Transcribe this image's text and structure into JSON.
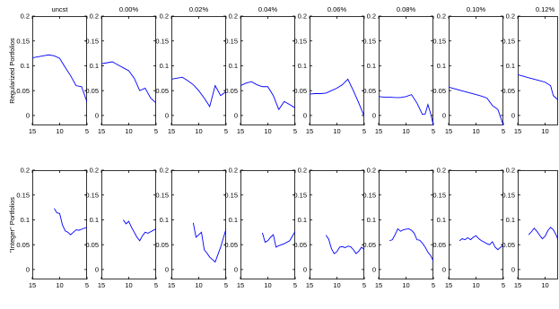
{
  "figure": {
    "row_labels": [
      "Regularized Portfolios",
      "\"Integer\" Portfolios"
    ],
    "col_titles": [
      "uncst",
      "0.00%",
      "0.02%",
      "0.04%",
      "0.06%",
      "0.08%",
      "0.10%",
      "0.12%"
    ]
  },
  "chart_data": [
    {
      "type": "line",
      "row": 0,
      "col": 0,
      "title": "uncst",
      "ylabel": "Regularized Portfolios",
      "xlim": [
        15,
        5
      ],
      "ylim": [
        -0.02,
        0.2
      ],
      "x_reversed": true,
      "xticks": [
        15,
        10,
        5
      ],
      "yticks": [
        0,
        0.05,
        0.1,
        0.15,
        0.2
      ],
      "ytick_labels": [
        "0",
        "0.05",
        "0.1",
        "0.15",
        "0.2"
      ],
      "line_color": "#0000ff",
      "series": [
        {
          "x": [
            15,
            14,
            13,
            12,
            11,
            10,
            9,
            8,
            7,
            6,
            5
          ],
          "y": [
            0.116,
            0.118,
            0.12,
            0.122,
            0.12,
            0.115,
            0.097,
            0.08,
            0.06,
            0.058,
            0.027
          ]
        }
      ]
    },
    {
      "type": "line",
      "row": 0,
      "col": 1,
      "title": "0.00%",
      "xlim": [
        15,
        5
      ],
      "ylim": [
        -0.02,
        0.2
      ],
      "x_reversed": true,
      "xticks": [
        15,
        10,
        5
      ],
      "yticks": [
        0,
        0.05,
        0.1,
        0.15,
        0.2
      ],
      "ytick_labels": [
        "0",
        "0.05",
        "0.1",
        "0.15",
        "0.2"
      ],
      "line_color": "#0000ff",
      "series": [
        {
          "x": [
            15,
            14,
            13,
            12,
            11,
            10,
            9,
            8,
            7,
            6,
            5
          ],
          "y": [
            0.104,
            0.106,
            0.108,
            0.102,
            0.096,
            0.09,
            0.075,
            0.05,
            0.055,
            0.035,
            0.025
          ]
        }
      ]
    },
    {
      "type": "line",
      "row": 0,
      "col": 2,
      "title": "0.02%",
      "xlim": [
        15,
        5
      ],
      "ylim": [
        -0.02,
        0.2
      ],
      "x_reversed": true,
      "xticks": [
        15,
        10,
        5
      ],
      "yticks": [
        0,
        0.05,
        0.1,
        0.15,
        0.2
      ],
      "ytick_labels": [
        "0",
        "0.05",
        "0.1",
        "0.15",
        "0.2"
      ],
      "line_color": "#0000ff",
      "series": [
        {
          "x": [
            15,
            14,
            13,
            12,
            11,
            10,
            9,
            8,
            7,
            6,
            5
          ],
          "y": [
            0.073,
            0.075,
            0.077,
            0.07,
            0.062,
            0.05,
            0.035,
            0.018,
            0.06,
            0.04,
            0.048
          ]
        }
      ]
    },
    {
      "type": "line",
      "row": 0,
      "col": 3,
      "title": "0.04%",
      "xlim": [
        15,
        5
      ],
      "ylim": [
        -0.02,
        0.2
      ],
      "x_reversed": true,
      "xticks": [
        15,
        10,
        5
      ],
      "yticks": [
        0,
        0.05,
        0.1,
        0.15,
        0.2
      ],
      "ytick_labels": [
        "0",
        "0.05",
        "0.1",
        "0.15",
        "0.2"
      ],
      "line_color": "#0000ff",
      "series": [
        {
          "x": [
            15,
            14,
            13,
            12,
            11,
            10,
            9,
            8,
            7,
            6,
            5
          ],
          "y": [
            0.06,
            0.065,
            0.068,
            0.062,
            0.058,
            0.058,
            0.04,
            0.012,
            0.028,
            0.022,
            0.015
          ]
        }
      ]
    },
    {
      "type": "line",
      "row": 0,
      "col": 4,
      "title": "0.06%",
      "xlim": [
        15,
        5
      ],
      "ylim": [
        -0.02,
        0.2
      ],
      "x_reversed": true,
      "xticks": [
        15,
        10,
        5
      ],
      "yticks": [
        0,
        0.05,
        0.1,
        0.15,
        0.2
      ],
      "ytick_labels": [
        "0",
        "0.05",
        "0.1",
        "0.15",
        "0.2"
      ],
      "line_color": "#0000ff",
      "series": [
        {
          "x": [
            15,
            14,
            13,
            12,
            11,
            10,
            9,
            8,
            7,
            6,
            5
          ],
          "y": [
            0.043,
            0.044,
            0.044,
            0.045,
            0.05,
            0.055,
            0.062,
            0.073,
            0.05,
            0.025,
            -0.002
          ]
        }
      ]
    },
    {
      "type": "line",
      "row": 0,
      "col": 5,
      "title": "0.08%",
      "xlim": [
        15,
        5
      ],
      "ylim": [
        -0.02,
        0.2
      ],
      "x_reversed": true,
      "xticks": [
        15,
        10,
        5
      ],
      "yticks": [
        0,
        0.05,
        0.1,
        0.15,
        0.2
      ],
      "ytick_labels": [
        "0",
        "0.05",
        "0.1",
        "0.15",
        "0.2"
      ],
      "line_color": "#0000ff",
      "series": [
        {
          "x": [
            15,
            14,
            13,
            12,
            11,
            10,
            9,
            8,
            7,
            6.5,
            6,
            5.5,
            5
          ],
          "y": [
            0.038,
            0.037,
            0.037,
            0.036,
            0.036,
            0.038,
            0.042,
            0.025,
            0.002,
            0.003,
            0.022,
            0.004,
            -0.02
          ]
        }
      ]
    },
    {
      "type": "line",
      "row": 0,
      "col": 6,
      "title": "0.10%",
      "xlim": [
        15,
        5
      ],
      "ylim": [
        -0.02,
        0.2
      ],
      "x_reversed": true,
      "xticks": [
        15,
        10,
        5
      ],
      "yticks": [
        0,
        0.05,
        0.1,
        0.15,
        0.2
      ],
      "ytick_labels": [
        "0",
        "0.05",
        "0.1",
        "0.15",
        "0.2"
      ],
      "line_color": "#0000ff",
      "series": [
        {
          "x": [
            15,
            14,
            13,
            12,
            11,
            10,
            9,
            8,
            7,
            6,
            5
          ],
          "y": [
            0.057,
            0.054,
            0.051,
            0.048,
            0.045,
            0.042,
            0.039,
            0.035,
            0.02,
            0.012,
            -0.02
          ]
        }
      ]
    },
    {
      "type": "line",
      "row": 0,
      "col": 7,
      "title": "0.12%",
      "xlim": [
        15,
        5
      ],
      "ylim": [
        -0.02,
        0.2
      ],
      "x_reversed": true,
      "xticks": [
        15,
        10
      ],
      "yticks": [
        0,
        0.05,
        0.1,
        0.15,
        0.2
      ],
      "ytick_labels": [
        "0",
        "0.05",
        "0.1",
        "0.15",
        "0.2"
      ],
      "line_color": "#0000ff",
      "series": [
        {
          "x": [
            15,
            14,
            13,
            12,
            11,
            10,
            9,
            8.5,
            8,
            7.5,
            7
          ],
          "y": [
            0.082,
            0.079,
            0.076,
            0.073,
            0.07,
            0.067,
            0.06,
            0.04,
            0.035,
            0.03,
            0.022
          ]
        }
      ]
    },
    {
      "type": "line",
      "row": 1,
      "col": 0,
      "ylabel": "\"Integer\" Portfolios",
      "xlim": [
        15,
        5
      ],
      "ylim": [
        -0.02,
        0.2
      ],
      "x_reversed": true,
      "xticks": [
        15,
        10,
        5
      ],
      "yticks": [
        0,
        0.05,
        0.1,
        0.15,
        0.2
      ],
      "ytick_labels": [
        "0",
        "0.05",
        "0.1",
        "0.15",
        "0.2"
      ],
      "line_color": "#0000ff",
      "series": [
        {
          "x": [
            11,
            10.5,
            10,
            9.5,
            9,
            8.5,
            8,
            7.5,
            7,
            6.5,
            6,
            5
          ],
          "y": [
            0.123,
            0.114,
            0.113,
            0.09,
            0.078,
            0.075,
            0.07,
            0.075,
            0.08,
            0.079,
            0.081,
            0.085
          ]
        }
      ]
    },
    {
      "type": "line",
      "row": 1,
      "col": 1,
      "xlim": [
        15,
        5
      ],
      "ylim": [
        -0.02,
        0.2
      ],
      "x_reversed": true,
      "xticks": [
        15,
        10,
        5
      ],
      "yticks": [
        0,
        0.05,
        0.1,
        0.15,
        0.2
      ],
      "ytick_labels": [
        "0",
        "0.05",
        "0.1",
        "0.15",
        "0.2"
      ],
      "line_color": "#0000ff",
      "series": [
        {
          "x": [
            11,
            10.5,
            10,
            9.5,
            9,
            8.5,
            8,
            7.5,
            7,
            6.5,
            6,
            5
          ],
          "y": [
            0.1,
            0.092,
            0.097,
            0.085,
            0.075,
            0.065,
            0.058,
            0.068,
            0.075,
            0.073,
            0.076,
            0.082
          ]
        }
      ]
    },
    {
      "type": "line",
      "row": 1,
      "col": 2,
      "xlim": [
        15,
        5
      ],
      "ylim": [
        -0.02,
        0.2
      ],
      "x_reversed": true,
      "xticks": [
        15,
        10,
        5
      ],
      "yticks": [
        0,
        0.05,
        0.1,
        0.15,
        0.2
      ],
      "ytick_labels": [
        "0",
        "0.05",
        "0.1",
        "0.15",
        "0.2"
      ],
      "line_color": "#0000ff",
      "series": [
        {
          "x": [
            11,
            10.5,
            10,
            9.5,
            9,
            8.5,
            8,
            7.5,
            7,
            6,
            5
          ],
          "y": [
            0.094,
            0.065,
            0.07,
            0.075,
            0.04,
            0.033,
            0.025,
            0.02,
            0.015,
            0.045,
            0.082
          ]
        }
      ]
    },
    {
      "type": "line",
      "row": 1,
      "col": 3,
      "xlim": [
        15,
        5
      ],
      "ylim": [
        -0.02,
        0.2
      ],
      "x_reversed": true,
      "xticks": [
        15,
        10,
        5
      ],
      "yticks": [
        0,
        0.05,
        0.1,
        0.15,
        0.2
      ],
      "ytick_labels": [
        "0",
        "0.05",
        "0.1",
        "0.15",
        "0.2"
      ],
      "line_color": "#0000ff",
      "series": [
        {
          "x": [
            11,
            10.5,
            10,
            9.5,
            9,
            8.5,
            8,
            7,
            6,
            5
          ],
          "y": [
            0.074,
            0.055,
            0.058,
            0.065,
            0.07,
            0.045,
            0.048,
            0.052,
            0.058,
            0.077
          ]
        }
      ]
    },
    {
      "type": "line",
      "row": 1,
      "col": 4,
      "xlim": [
        15,
        5
      ],
      "ylim": [
        -0.02,
        0.2
      ],
      "x_reversed": true,
      "xticks": [
        15,
        10,
        5
      ],
      "yticks": [
        0,
        0.05,
        0.1,
        0.15,
        0.2
      ],
      "ytick_labels": [
        "0",
        "0.05",
        "0.1",
        "0.15",
        "0.2"
      ],
      "line_color": "#0000ff",
      "series": [
        {
          "x": [
            12,
            11.5,
            11,
            10.5,
            10,
            9.5,
            9,
            8.5,
            8,
            7.5,
            7,
            6.5,
            6,
            5.5,
            5
          ],
          "y": [
            0.069,
            0.061,
            0.042,
            0.032,
            0.036,
            0.045,
            0.046,
            0.044,
            0.047,
            0.046,
            0.04,
            0.032,
            0.037,
            0.045,
            0.04
          ]
        }
      ]
    },
    {
      "type": "line",
      "row": 1,
      "col": 5,
      "xlim": [
        15,
        5
      ],
      "ylim": [
        -0.02,
        0.2
      ],
      "x_reversed": true,
      "xticks": [
        15,
        10,
        5
      ],
      "yticks": [
        0,
        0.05,
        0.1,
        0.15,
        0.2
      ],
      "ytick_labels": [
        "0",
        "0.05",
        "0.1",
        "0.15",
        "0.2"
      ],
      "line_color": "#0000ff",
      "series": [
        {
          "x": [
            13,
            12.5,
            12,
            11.5,
            11,
            10.5,
            10,
            9.5,
            9,
            8.5,
            8,
            7.5,
            7,
            6.5,
            6,
            5.5,
            5
          ],
          "y": [
            0.058,
            0.06,
            0.07,
            0.082,
            0.077,
            0.08,
            0.081,
            0.082,
            0.079,
            0.073,
            0.06,
            0.059,
            0.053,
            0.045,
            0.035,
            0.028,
            0.017
          ]
        }
      ]
    },
    {
      "type": "line",
      "row": 1,
      "col": 6,
      "xlim": [
        15,
        5
      ],
      "ylim": [
        -0.02,
        0.2
      ],
      "x_reversed": true,
      "xticks": [
        15,
        10,
        5
      ],
      "yticks": [
        0,
        0.05,
        0.1,
        0.15,
        0.2
      ],
      "ytick_labels": [
        "0",
        "0.05",
        "0.1",
        "0.15",
        "0.2"
      ],
      "line_color": "#0000ff",
      "series": [
        {
          "x": [
            13,
            12.5,
            12,
            11.5,
            11,
            10.5,
            10,
            9.5,
            9,
            8.5,
            8,
            7.5,
            7,
            6.5,
            6,
            5.5,
            5
          ],
          "y": [
            0.058,
            0.062,
            0.06,
            0.064,
            0.06,
            0.065,
            0.068,
            0.062,
            0.058,
            0.055,
            0.052,
            0.05,
            0.056,
            0.045,
            0.04,
            0.045,
            0.048
          ]
        }
      ]
    },
    {
      "type": "line",
      "row": 1,
      "col": 7,
      "xlim": [
        15,
        5
      ],
      "ylim": [
        -0.02,
        0.2
      ],
      "x_reversed": true,
      "xticks": [
        15,
        10
      ],
      "yticks": [
        0,
        0.05,
        0.1,
        0.15,
        0.2
      ],
      "ytick_labels": [
        "0",
        "0.05",
        "0.1",
        "0.15",
        "0.2"
      ],
      "line_color": "#0000ff",
      "series": [
        {
          "x": [
            13,
            12.5,
            12,
            11.5,
            11,
            10.5,
            10,
            9.5,
            9,
            8.5,
            8,
            7.5,
            7
          ],
          "y": [
            0.07,
            0.076,
            0.083,
            0.077,
            0.069,
            0.062,
            0.067,
            0.078,
            0.085,
            0.08,
            0.07,
            0.056,
            0.065
          ]
        }
      ]
    }
  ]
}
